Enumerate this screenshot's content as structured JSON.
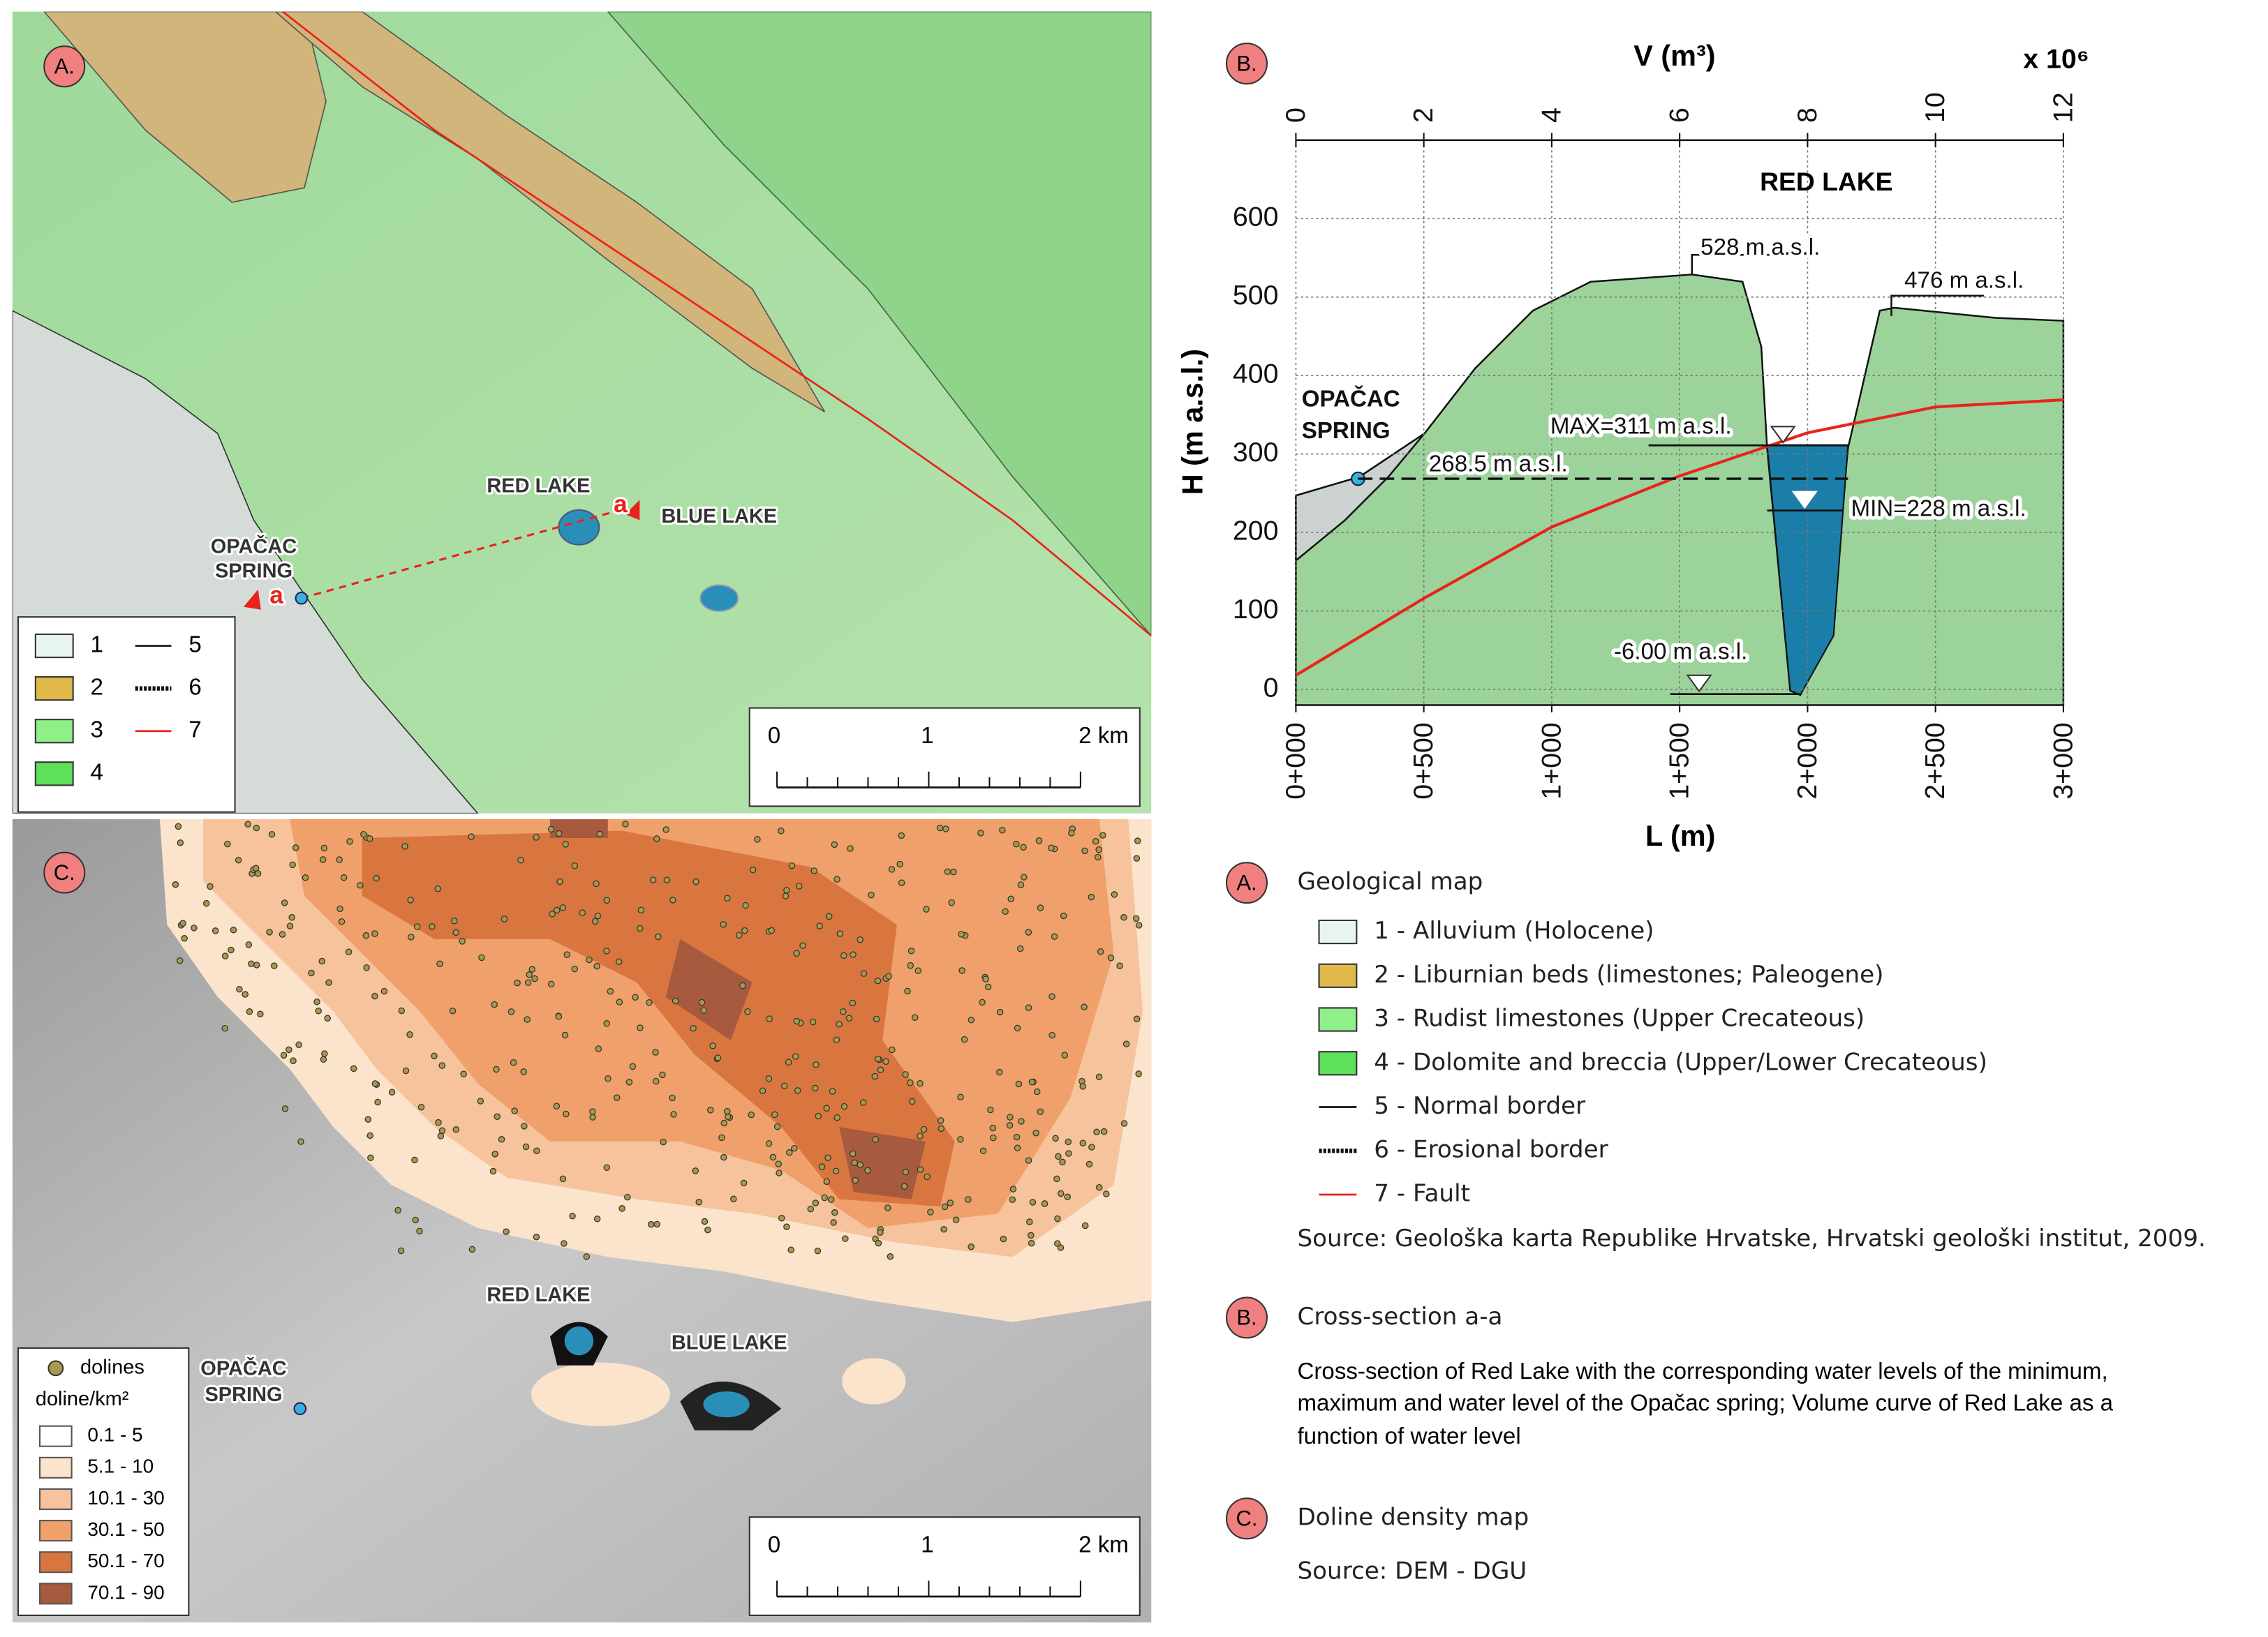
{
  "panel_a": {
    "label": "A.",
    "lakes": [
      "RED LAKE",
      "BLUE LAKE"
    ],
    "spring": [
      "OPAČAC",
      "SPRING"
    ],
    "section_ends": [
      "a",
      "a"
    ],
    "legend": [
      "1",
      "2",
      "3",
      "4",
      "5",
      "6",
      "7"
    ],
    "scale": [
      "0",
      "1",
      "2 km"
    ]
  },
  "chart_data": {
    "type": "line",
    "label": "B.",
    "title": "RED LAKE",
    "xlabel": "L (m)",
    "ylabel": "H (m a.s.l.)",
    "x2label": "V (m³)",
    "x2_multiplier": "x 10⁶",
    "xlim": [
      0,
      3000
    ],
    "xticks": [
      {
        "value": 0,
        "label": "0+000"
      },
      {
        "value": 500,
        "label": "0+500"
      },
      {
        "value": 1000,
        "label": "1+000"
      },
      {
        "value": 1500,
        "label": "1+500"
      },
      {
        "value": 2000,
        "label": "2+000"
      },
      {
        "value": 2500,
        "label": "2+500"
      },
      {
        "value": 3000,
        "label": "3+000"
      }
    ],
    "x2lim": [
      0,
      12
    ],
    "x2ticks": [
      0,
      2,
      4,
      6,
      8,
      10,
      12
    ],
    "ylim": [
      -20,
      700
    ],
    "yticks": [
      0,
      100,
      200,
      300,
      400,
      500,
      600
    ],
    "grid": true,
    "series": [
      {
        "axis": "x2",
        "color": "#e8231c",
        "x": [
          0,
          2,
          4,
          6,
          8,
          10,
          12
        ],
        "values": [
          18,
          116,
          207,
          272,
          327,
          360,
          369
        ]
      }
    ],
    "annotations": [
      {
        "label": "528 m a.s.l.",
        "value": 528
      },
      {
        "label": "476 m a.s.l.",
        "value": 476
      },
      {
        "label": "MAX=311 m a.s.l.",
        "value": 311
      },
      {
        "label": "268.5 m a.s.l.",
        "value": 268.5
      },
      {
        "label": "MIN=228 m a.s.l.",
        "value": 228
      },
      {
        "label": "-6.00 m a.s.l.",
        "value": -6
      }
    ],
    "spring": [
      "OPAČAC",
      "SPRING"
    ]
  },
  "panel_c": {
    "label": "C.",
    "lakes": [
      "RED LAKE",
      "BLUE LAKE"
    ],
    "spring": [
      "OPAČAC",
      "SPRING"
    ],
    "legend_title": [
      "dolines",
      "doline/km²"
    ],
    "classes": [
      "0.1 - 5",
      "5.1 - 10",
      "10.1 - 30",
      "30.1 - 50",
      "50.1 - 70",
      "70.1 - 90"
    ],
    "scale": [
      "0",
      "1",
      "2 km"
    ]
  },
  "captions": {
    "a": {
      "label": "A.",
      "title": "Geological map",
      "items": [
        "1 - Alluvium (Holocene)",
        "2 - Liburnian beds (limestones; Paleogene)",
        "3 - Rudist limestones (Upper Crecateous)",
        "4 - Dolomite and breccia (Upper/Lower Crecateous)",
        "5 - Normal border",
        "6 - Erosional border",
        "7 - Fault"
      ],
      "source": "Source: Geološka karta Republike Hrvatske, Hrvatski geološki institut, 2009."
    },
    "b": {
      "label": "B.",
      "title": "Cross-section a-a",
      "description": [
        "Cross-section of Red Lake with the corresponding water levels of the minimum,",
        "maximum and water level of the Opačac spring; Volume curve of Red Lake as a",
        "function of water level"
      ]
    },
    "c": {
      "label": "C.",
      "title": "Doline density map",
      "source": "Source: DEM - DGU"
    }
  }
}
